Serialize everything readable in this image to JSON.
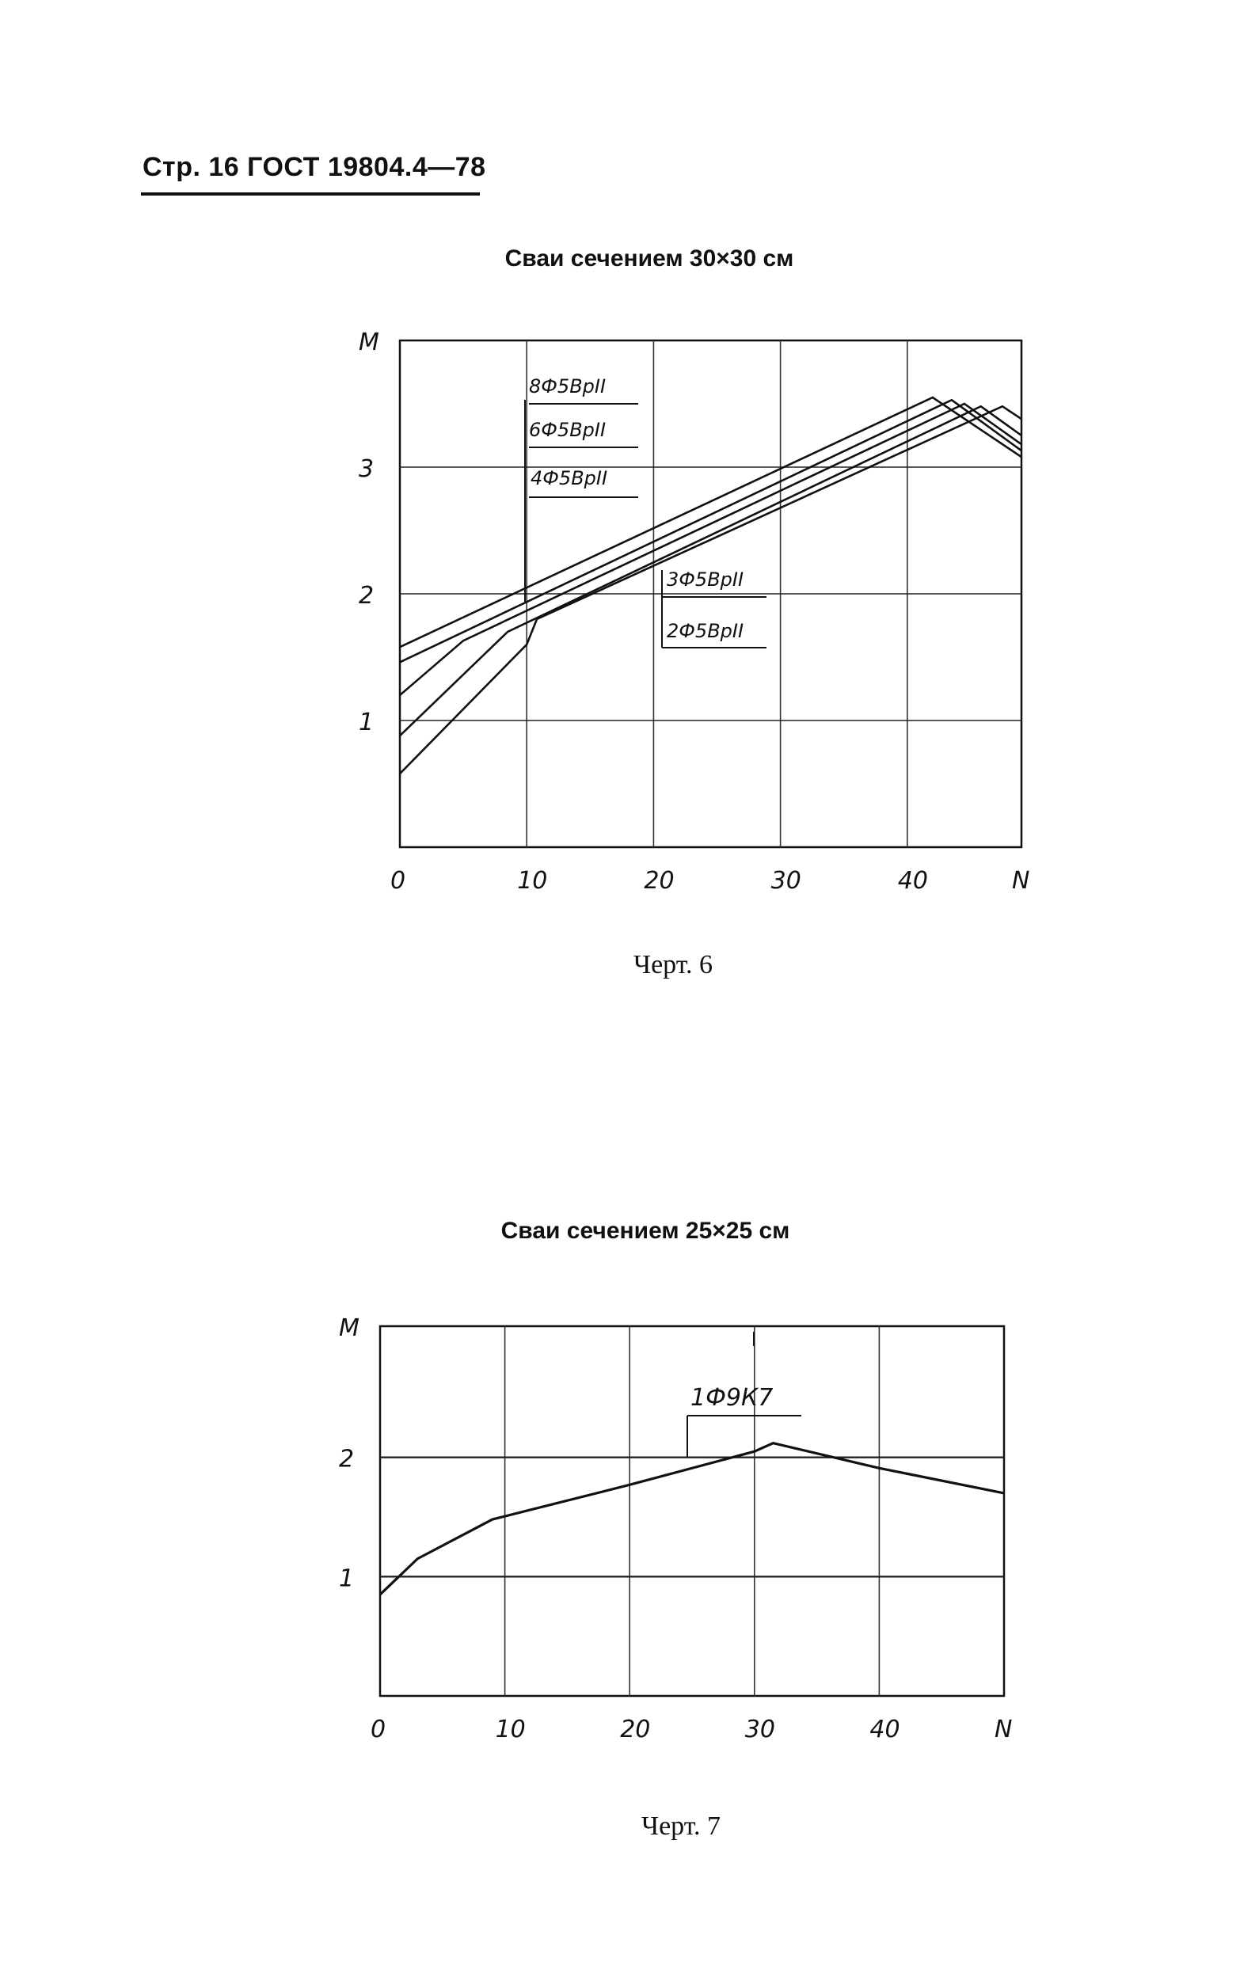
{
  "header": {
    "text": "Стр. 16 ГОСТ 19804.4—78"
  },
  "charts": [
    {
      "title": "Сваи сечением 30×30 см",
      "caption": "Черт. 6"
    },
    {
      "title": "Сваи сечением 25×25 см",
      "caption": "Черт. 7"
    }
  ],
  "chart_data": [
    {
      "type": "line",
      "title": "Сваи сечением 30×30 см",
      "xlabel": "N",
      "ylabel": "M",
      "xlim": [
        0,
        49
      ],
      "ylim": [
        0,
        4
      ],
      "x_ticks": [
        "0",
        "10",
        "20",
        "30",
        "40",
        "N"
      ],
      "y_ticks": [
        "1",
        "2",
        "3",
        "M"
      ],
      "grid": true,
      "series": [
        {
          "name": "8Ф5ВрII",
          "x": [
            0,
            42,
            49
          ],
          "y": [
            1.58,
            3.55,
            3.08
          ]
        },
        {
          "name": "6Ф5ВрII",
          "x": [
            0,
            43.5,
            49
          ],
          "y": [
            1.46,
            3.53,
            3.13
          ]
        },
        {
          "name": "4Ф5ВрII",
          "x": [
            0,
            5,
            44.5,
            49
          ],
          "y": [
            1.2,
            1.63,
            3.5,
            3.18
          ]
        },
        {
          "name": "3Ф5ВрII",
          "x": [
            0,
            8.5,
            45.8,
            49
          ],
          "y": [
            0.88,
            1.7,
            3.48,
            3.25
          ]
        },
        {
          "name": "2Ф5ВрII",
          "x": [
            0,
            10,
            10.8,
            47.5,
            49
          ],
          "y": [
            0.58,
            1.6,
            1.8,
            3.48,
            3.38
          ]
        }
      ]
    },
    {
      "type": "line",
      "title": "Сваи сечением 25×25 см",
      "xlabel": "N",
      "ylabel": "M",
      "xlim": [
        0,
        50
      ],
      "ylim": [
        0,
        3.1
      ],
      "x_ticks": [
        "0",
        "10",
        "20",
        "30",
        "40",
        "N"
      ],
      "y_ticks": [
        "1",
        "2",
        "M"
      ],
      "grid": true,
      "series": [
        {
          "name": "1Ф9К7",
          "x": [
            0,
            3,
            9,
            20,
            30,
            31.5,
            40,
            50
          ],
          "y": [
            0.85,
            1.15,
            1.48,
            1.77,
            2.05,
            2.12,
            1.91,
            1.7
          ]
        }
      ]
    }
  ]
}
